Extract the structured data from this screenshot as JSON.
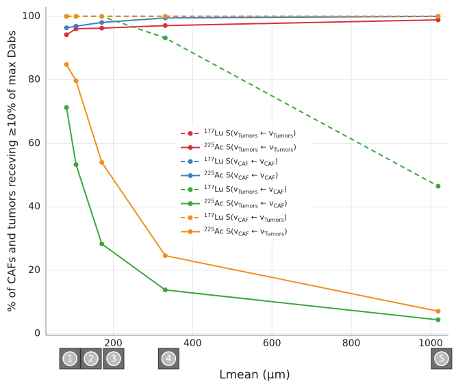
{
  "chart_data": {
    "type": "line",
    "x_label": "Lmean (μm)",
    "y_label": "% of CAFs and tumors receving ≥10% of max Dabs",
    "x": [
      82,
      106,
      171,
      331,
      1019
    ],
    "xlim": [
      30,
      1045
    ],
    "xticks": [
      200,
      400,
      600,
      800,
      1000
    ],
    "ylim": [
      -0.5,
      103
    ],
    "yticks": [
      0,
      20,
      40,
      60,
      80,
      100
    ],
    "grid": true,
    "image_labels": [
      "1",
      "2",
      "3",
      "4",
      "5"
    ],
    "series": [
      {
        "name": "177Lu S(vTumors ← vTumors)",
        "color": "#d9303a",
        "dashed": true,
        "values": [
          100,
          100,
          100,
          100,
          100
        ]
      },
      {
        "name": "225Ac S(vTumors ← vTumors)",
        "color": "#d9303a",
        "dashed": false,
        "values": [
          94.2,
          96.1,
          96.3,
          97.1,
          98.9
        ]
      },
      {
        "name": "177Lu S(vCAF ← vCAF)",
        "color": "#3f7fbf",
        "dashed": true,
        "values": [
          100,
          100,
          100,
          100,
          100
        ]
      },
      {
        "name": "225Ac S(vCAF ← vCAF)",
        "color": "#3f7fbf",
        "dashed": false,
        "values": [
          96.4,
          96.9,
          98.1,
          99.5,
          100
        ]
      },
      {
        "name": "177Lu S(vTumors ← vCAF)",
        "color": "#3aa83a",
        "dashed": true,
        "values": [
          100,
          100,
          100,
          93.2,
          46.5
        ]
      },
      {
        "name": "225Ac S(vTumors ← vCAF)",
        "color": "#3aa83a",
        "dashed": false,
        "values": [
          71.3,
          53.3,
          28.3,
          13.8,
          4.4
        ]
      },
      {
        "name": "177Lu S(vCAF ← vTumors)",
        "color": "#f28e1c",
        "dashed": true,
        "values": [
          100,
          100,
          100,
          100,
          100
        ]
      },
      {
        "name": "225Ac S(vCAF ← vTumors)",
        "color": "#f28e1c",
        "dashed": false,
        "values": [
          84.8,
          79.7,
          54,
          24.6,
          7.1
        ]
      }
    ]
  }
}
